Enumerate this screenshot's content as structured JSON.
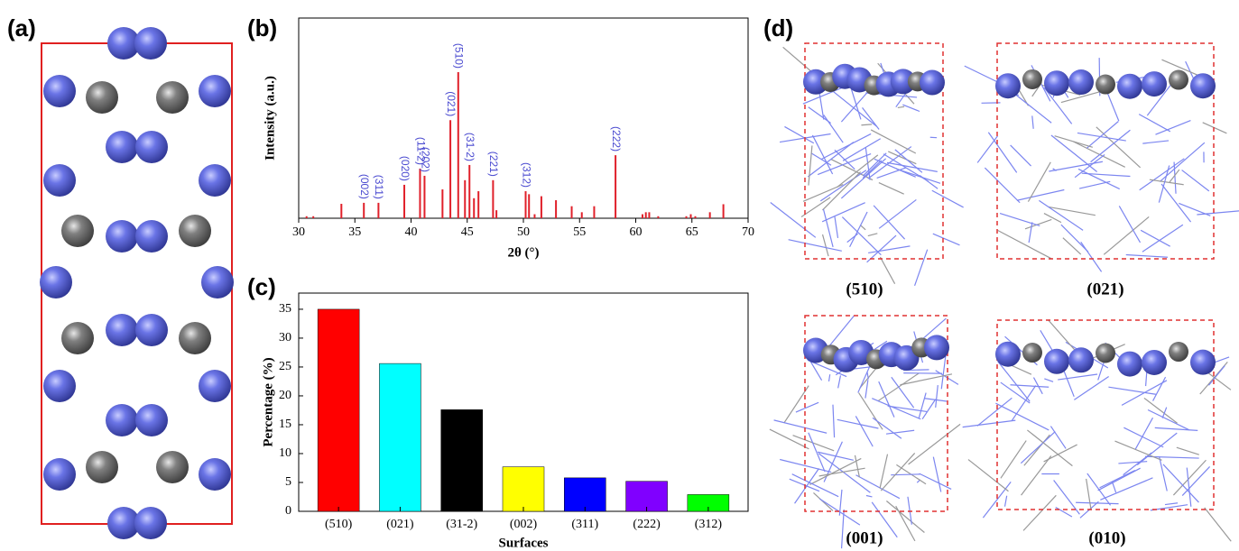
{
  "panel_labels": [
    "(a)",
    "(b)",
    "(c)",
    "(d)"
  ],
  "panel_d": {
    "surfaces": [
      "(510)",
      "(021)",
      "(001)",
      "(010)"
    ]
  },
  "chart_data": [
    {
      "type": "stick",
      "xlabel": "2θ (°)",
      "ylabel": "Intensity (a.u.)",
      "color": "#e0202a",
      "label_color": "#4a4ad0",
      "xlim": [
        30,
        70
      ],
      "xticks": [
        30,
        35,
        40,
        45,
        50,
        55,
        60,
        65,
        70
      ],
      "ylim": [
        0,
        100
      ],
      "x": [
        30.7,
        31.3,
        33.8,
        35.8,
        37.1,
        39.4,
        40.8,
        41.2,
        42.8,
        43.5,
        44.2,
        44.8,
        45.2,
        45.6,
        46.0,
        47.3,
        47.6,
        50.2,
        50.5,
        51.0,
        51.6,
        52.9,
        54.3,
        55.2,
        56.3,
        58.2,
        60.6,
        60.9,
        61.2,
        62.0,
        64.5,
        64.9,
        65.3,
        66.6,
        67.8
      ],
      "values": [
        1,
        1,
        7.2,
        7.7,
        7.7,
        16.7,
        24.8,
        21.2,
        14.4,
        49,
        73,
        19,
        26.6,
        10,
        13.5,
        19,
        4,
        13.5,
        12,
        2,
        11,
        9,
        6,
        3,
        6,
        31.5,
        2,
        3,
        3,
        1,
        1,
        2,
        1,
        3,
        7
      ],
      "labels": [
        null,
        null,
        null,
        "(002)",
        "(311)",
        "(020)",
        "(11-2)",
        "(202)",
        null,
        "(021)",
        "(510)",
        null,
        "(31-2)",
        null,
        null,
        "(221)",
        null,
        "(312)",
        null,
        null,
        null,
        null,
        null,
        null,
        null,
        "(222)",
        null,
        null,
        null,
        null,
        null,
        null,
        null,
        null,
        null
      ]
    },
    {
      "type": "bar",
      "xlabel": "Surfaces",
      "ylabel": "Percentage (%)",
      "categories": [
        "(510)",
        "(021)",
        "(31-2)",
        "(002)",
        "(311)",
        "(222)",
        "(312)"
      ],
      "values": [
        35,
        25.6,
        17.6,
        7.7,
        5.8,
        5.2,
        2.9
      ],
      "colors": [
        "#ff0000",
        "#00ffff",
        "#000000",
        "#ffff00",
        "#0000ff",
        "#8000ff",
        "#00ff00"
      ],
      "ylim": [
        0,
        37.8
      ],
      "yticks": [
        0,
        5,
        10,
        15,
        20,
        25,
        30,
        35
      ]
    }
  ]
}
